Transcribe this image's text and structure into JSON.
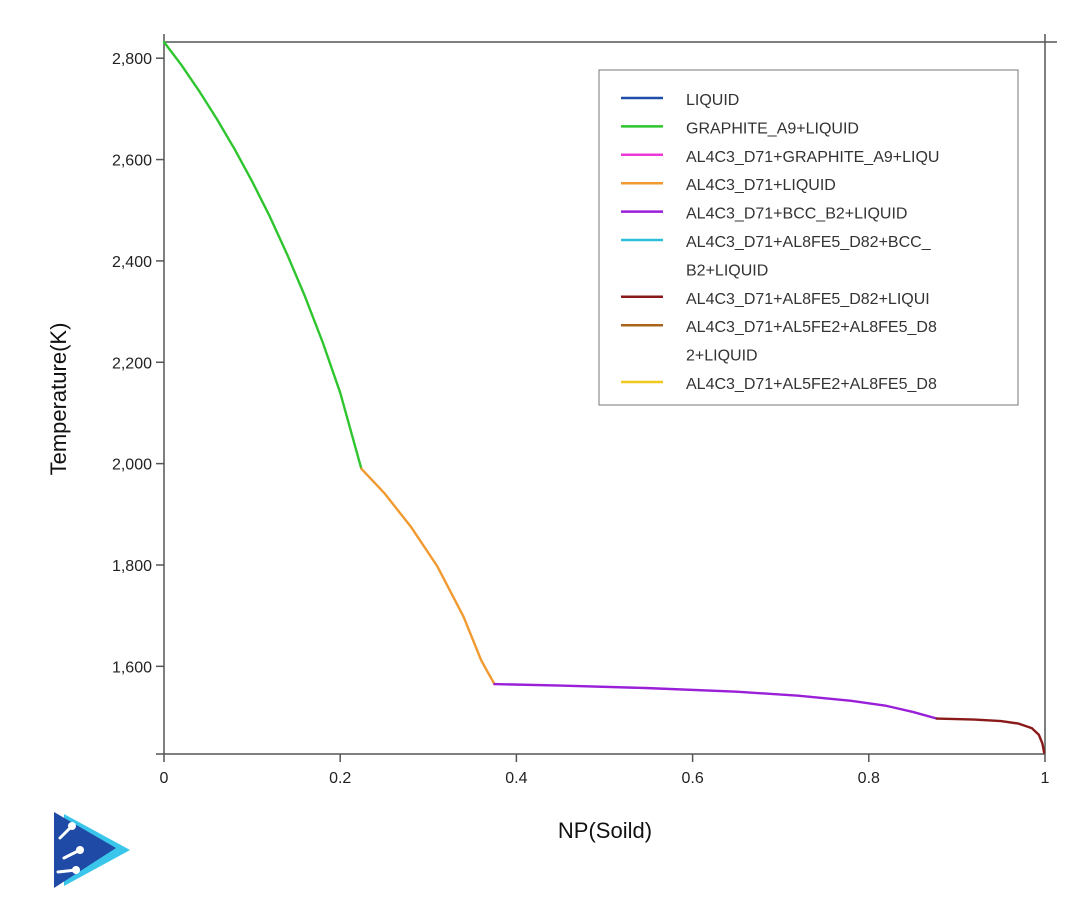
{
  "chart_data": {
    "type": "line",
    "title": "",
    "xlabel": "NP(Soild)",
    "ylabel": "Temperature(K)",
    "xlim": [
      0,
      1
    ],
    "ylim": [
      1427,
      2832
    ],
    "x_ticks": [
      {
        "value": 0,
        "label": "0"
      },
      {
        "value": 0.2,
        "label": "0.2"
      },
      {
        "value": 0.4,
        "label": "0.4"
      },
      {
        "value": 0.6,
        "label": "0.6"
      },
      {
        "value": 0.8,
        "label": "0.8"
      },
      {
        "value": 1,
        "label": "1"
      }
    ],
    "y_ticks": [
      {
        "value": 1600,
        "label": "1,600"
      },
      {
        "value": 1800,
        "label": "1,800"
      },
      {
        "value": 2000,
        "label": "2,000"
      },
      {
        "value": 2200,
        "label": "2,200"
      },
      {
        "value": 2400,
        "label": "2,400"
      },
      {
        "value": 2600,
        "label": "2,600"
      },
      {
        "value": 2800,
        "label": "2,800"
      }
    ],
    "grid": false,
    "legend_position": "top-right",
    "legend": [
      {
        "lines": [
          "LIQUID"
        ],
        "color": "#1f4fa8"
      },
      {
        "lines": [
          "GRAPHITE_A9+LIQUID"
        ],
        "color": "#2ec52e"
      },
      {
        "lines": [
          "AL4C3_D71+GRAPHITE_A9+LIQU"
        ],
        "color": "#ee38d8"
      },
      {
        "lines": [
          "AL4C3_D71+LIQUID"
        ],
        "color": "#f09a30"
      },
      {
        "lines": [
          "AL4C3_D71+BCC_B2+LIQUID"
        ],
        "color": "#9a1fd8"
      },
      {
        "lines": [
          "AL4C3_D71+AL8FE5_D82+BCC_",
          "B2+LIQUID"
        ],
        "color": "#2cc0d8"
      },
      {
        "lines": [
          "AL4C3_D71+AL8FE5_D82+LIQUI"
        ],
        "color": "#8a1a1a"
      },
      {
        "lines": [
          "AL4C3_D71+AL5FE2+AL8FE5_D8",
          "2+LIQUID"
        ],
        "color": "#a8641e"
      },
      {
        "lines": [
          "AL4C3_D71+AL5FE2+AL8FE5_D8"
        ],
        "color": "#f2c81e"
      }
    ],
    "series": [
      {
        "color": "#2ec52e",
        "x": [
          0,
          0.02,
          0.04,
          0.06,
          0.08,
          0.1,
          0.12,
          0.14,
          0.16,
          0.18,
          0.2,
          0.224
        ],
        "y": [
          2832,
          2786,
          2735,
          2680,
          2621,
          2557,
          2488,
          2412,
          2330,
          2240,
          2140,
          1990
        ]
      },
      {
        "color": "#f09a30",
        "x": [
          0.224,
          0.25,
          0.28,
          0.31,
          0.34,
          0.36,
          0.375
        ],
        "y": [
          1990,
          1942,
          1876,
          1798,
          1698,
          1612,
          1565
        ]
      },
      {
        "color": "#9a1fd8",
        "x": [
          0.375,
          0.45,
          0.55,
          0.65,
          0.72,
          0.78,
          0.82,
          0.85,
          0.877
        ],
        "y": [
          1565,
          1562,
          1557,
          1550,
          1542,
          1532,
          1522,
          1510,
          1497
        ]
      },
      {
        "color": "#8a1a1a",
        "x": [
          0.877,
          0.92,
          0.95,
          0.97,
          0.985,
          0.993,
          0.997,
          0.999
        ],
        "y": [
          1497,
          1495,
          1492,
          1487,
          1478,
          1465,
          1448,
          1430
        ]
      }
    ]
  },
  "logo": {
    "name": "logo-mark",
    "colors": {
      "back": "#39c6ea",
      "front": "#1f4aa6"
    }
  }
}
